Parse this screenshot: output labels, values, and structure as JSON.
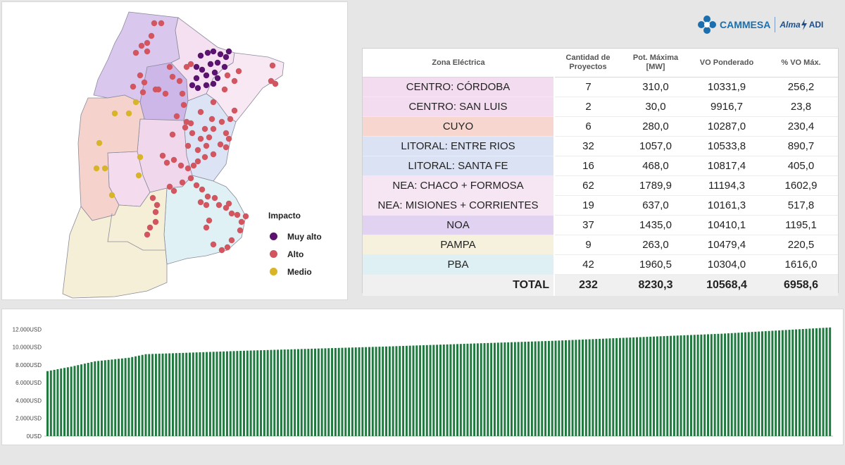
{
  "colors": {
    "muy_alto": "#5a1470",
    "alto": "#d2555f",
    "medio": "#d8b429",
    "bar": "#1e7a3e",
    "cammesa_blue": "#1c6fae"
  },
  "logo": {
    "brand": "CAMMESA",
    "alma": "Alma",
    "adi": "ADI",
    "icon": "cammesa-flower-icon"
  },
  "legend": {
    "title": "Impacto",
    "items": [
      {
        "label": "Muy alto",
        "color": "#5a1470"
      },
      {
        "label": "Alto",
        "color": "#d2555f"
      },
      {
        "label": "Medio",
        "color": "#d8b429"
      }
    ]
  },
  "table": {
    "headers": {
      "zona": "Zona Eléctrica",
      "cantidad": "Cantidad de Proyectos",
      "pot": "Pot. Máxima [MW]",
      "vo": "VO Ponderado",
      "pct": "% VO Máx."
    },
    "rows": [
      {
        "zona": "CENTRO: CÓRDOBA",
        "cantidad": "7",
        "pot": "310,0",
        "vo": "10331,9",
        "pct": "256,2",
        "color": "#f3dcef"
      },
      {
        "zona": "CENTRO: SAN LUIS",
        "cantidad": "2",
        "pot": "30,0",
        "vo": "9916,7",
        "pct": "23,8",
        "color": "#f3dcef"
      },
      {
        "zona": "CUYO",
        "cantidad": "6",
        "pot": "280,0",
        "vo": "10287,0",
        "pct": "230,4",
        "color": "#f7d6d0"
      },
      {
        "zona": "LITORAL: ENTRE RIOS",
        "cantidad": "32",
        "pot": "1057,0",
        "vo": "10533,8",
        "pct": "890,7",
        "color": "#dbe2f3"
      },
      {
        "zona": "LITORAL: SANTA FE",
        "cantidad": "16",
        "pot": "468,0",
        "vo": "10817,4",
        "pct": "405,0",
        "color": "#dbe2f3"
      },
      {
        "zona": "NEA: CHACO + FORMOSA",
        "cantidad": "62",
        "pot": "1789,9",
        "vo": "11194,3",
        "pct": "1602,9",
        "color": "#f6e6f3"
      },
      {
        "zona": "NEA: MISIONES + CORRIENTES",
        "cantidad": "19",
        "pot": "637,0",
        "vo": "10161,3",
        "pct": "517,8",
        "color": "#f6e6f3"
      },
      {
        "zona": "NOA",
        "cantidad": "37",
        "pot": "1435,0",
        "vo": "10410,1",
        "pct": "1195,1",
        "color": "#e2d2f2"
      },
      {
        "zona": "PAMPA",
        "cantidad": "9",
        "pot": "263,0",
        "vo": "10479,4",
        "pct": "220,5",
        "color": "#f6f1dc"
      },
      {
        "zona": "PBA",
        "cantidad": "42",
        "pot": "1960,5",
        "vo": "10304,0",
        "pct": "1616,0",
        "color": "#def0f4"
      }
    ],
    "total": {
      "zona": "TOTAL",
      "cantidad": "232",
      "pot": "8230,3",
      "vo": "10568,4",
      "pct": "6958,6"
    }
  },
  "chart_data": {
    "type": "bar",
    "count": 232,
    "ylabels": [
      "12.000USD",
      "10.000USD",
      "8.000USD",
      "6.000USD",
      "4.000USD",
      "2.000USD",
      "0USD"
    ],
    "ylim": [
      0,
      12500
    ],
    "values_description_curve": [
      {
        "rank": 1,
        "value": 7300
      },
      {
        "rank": 8,
        "value": 7800
      },
      {
        "rank": 15,
        "value": 8400
      },
      {
        "rank": 25,
        "value": 8800
      },
      {
        "rank": 30,
        "value": 9200
      },
      {
        "rank": 60,
        "value": 9600
      },
      {
        "rank": 100,
        "value": 10050
      },
      {
        "rank": 150,
        "value": 10700
      },
      {
        "rank": 200,
        "value": 11500
      },
      {
        "rank": 232,
        "value": 12200
      }
    ]
  }
}
